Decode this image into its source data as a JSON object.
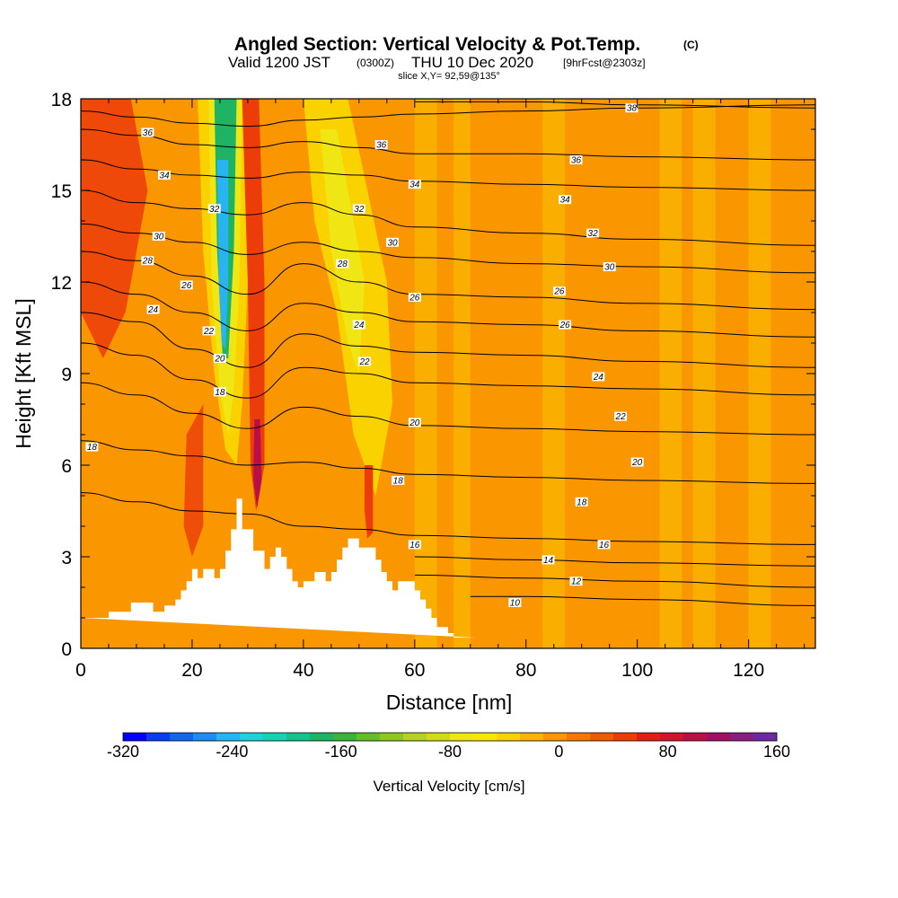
{
  "chart_data": {
    "type": "heatmap",
    "title": "Angled Section: Vertical Velocity & Pot.Temp.",
    "title_mark": "(C)",
    "subtitle_main": "Valid 1200 JST",
    "subtitle_zulu": "(0300Z)",
    "subtitle_date": "THU 10 Dec 2020",
    "subtitle_fcst": "[9hrFcst@2303z]",
    "slice_label": "slice X,Y= 92,59@135°",
    "xlabel": "Distance [nm]",
    "ylabel": "Height [Kft MSL]",
    "xlim": [
      0,
      132
    ],
    "ylim": [
      0,
      18
    ],
    "x_ticks": [
      0,
      20,
      40,
      60,
      80,
      100,
      120
    ],
    "y_ticks": [
      0,
      3,
      6,
      9,
      12,
      15,
      18
    ],
    "colorbar": {
      "label": "Vertical Velocity [cm/s]",
      "range": [
        -320,
        160
      ],
      "tick_values": [
        -320,
        -240,
        -160,
        -80,
        0,
        80,
        160
      ],
      "colors": [
        "#0000ff",
        "#0a3cf5",
        "#1464f0",
        "#1e8cf0",
        "#28b4f0",
        "#1ed2dc",
        "#14d2b4",
        "#14c38c",
        "#1eb464",
        "#3cb43c",
        "#64be28",
        "#8cc81e",
        "#b4d21e",
        "#d2dc14",
        "#f0e614",
        "#fae600",
        "#fad200",
        "#fab400",
        "#fa9600",
        "#f57800",
        "#f05a00",
        "#eb3c0a",
        "#e11e14",
        "#d2142d",
        "#b90f46",
        "#a00f64",
        "#871e82",
        "#6e28a0"
      ]
    },
    "field_colors": {
      "background": "#fa9600",
      "light": "#fab400",
      "yellow": "#fad200",
      "bright_yellow": "#f0e614",
      "red": "#eb3c0a",
      "dark_red": "#b90f46",
      "green": "#1eb464",
      "cyan": "#28b4f0"
    },
    "terrain": {
      "x": [
        0,
        5,
        5,
        9,
        9,
        13,
        13,
        15,
        15,
        17,
        17,
        18,
        18,
        19,
        19,
        20,
        20,
        21,
        21,
        22,
        22,
        24,
        24,
        25,
        25,
        26,
        26,
        27,
        27,
        28,
        28,
        29,
        29,
        31,
        31,
        33,
        33,
        34,
        34,
        35,
        35,
        36,
        36,
        37,
        37,
        38,
        38,
        39,
        39,
        40,
        40,
        42,
        42,
        44,
        44,
        45,
        45,
        46,
        46,
        47,
        47,
        48,
        48,
        49,
        49,
        50,
        50,
        53,
        53,
        54,
        54,
        55,
        55,
        56,
        56,
        57,
        57,
        60,
        60,
        61,
        61,
        62,
        62,
        63,
        63,
        64,
        64,
        66,
        66,
        67,
        67,
        70,
        70,
        71,
        71,
        132
      ],
      "height": [
        1.0,
        1.0,
        1.2,
        1.2,
        1.5,
        1.5,
        1.2,
        1.2,
        1.4,
        1.4,
        1.6,
        1.6,
        1.9,
        1.9,
        2.2,
        2.2,
        2.6,
        2.6,
        2.3,
        2.3,
        2.6,
        2.6,
        2.3,
        2.3,
        2.6,
        2.6,
        3.2,
        3.2,
        3.9,
        3.9,
        4.9,
        4.9,
        3.9,
        3.9,
        3.2,
        3.2,
        2.6,
        2.6,
        3.0,
        3.0,
        3.3,
        3.3,
        3.0,
        3.0,
        2.6,
        2.6,
        2.2,
        2.2,
        2.0,
        2.0,
        2.2,
        2.2,
        2.5,
        2.5,
        2.2,
        2.2,
        2.5,
        2.5,
        2.9,
        2.9,
        3.3,
        3.3,
        3.6,
        3.6,
        3.6,
        3.6,
        3.3,
        3.3,
        2.9,
        2.9,
        2.5,
        2.5,
        2.2,
        2.2,
        1.9,
        1.9,
        2.2,
        2.2,
        1.9,
        1.9,
        1.6,
        1.6,
        1.3,
        1.3,
        1.0,
        1.0,
        0.7,
        0.7,
        0.5,
        0.5,
        0.35,
        0.35,
        0.35,
        0.35,
        0.35
      ]
    },
    "isentropes": [
      {
        "label": "36",
        "points": [
          [
            0,
            17.6
          ],
          [
            10,
            17.4
          ],
          [
            20,
            17.2
          ],
          [
            30,
            17.1
          ],
          [
            40,
            17.3
          ],
          [
            50,
            17.4
          ],
          [
            60,
            17.5
          ],
          [
            80,
            17.6
          ],
          [
            100,
            17.7
          ],
          [
            132,
            17.8
          ]
        ]
      },
      {
        "label": "38",
        "points": [
          [
            60,
            17.9
          ],
          [
            80,
            17.9
          ],
          [
            100,
            17.8
          ],
          [
            132,
            17.7
          ]
        ]
      },
      {
        "label": "36",
        "points": [
          [
            0,
            17.0
          ],
          [
            10,
            16.8
          ],
          [
            20,
            16.5
          ],
          [
            30,
            16.4
          ],
          [
            40,
            16.6
          ],
          [
            50,
            16.4
          ],
          [
            60,
            16.2
          ],
          [
            80,
            16.2
          ],
          [
            100,
            16.1
          ],
          [
            132,
            16.0
          ]
        ]
      },
      {
        "label": "34",
        "points": [
          [
            0,
            16.0
          ],
          [
            10,
            15.7
          ],
          [
            20,
            15.5
          ],
          [
            30,
            15.4
          ],
          [
            40,
            15.6
          ],
          [
            50,
            15.5
          ],
          [
            60,
            15.3
          ],
          [
            80,
            15.2
          ],
          [
            100,
            15.1
          ],
          [
            132,
            15.0
          ]
        ]
      },
      {
        "label": "32",
        "points": [
          [
            0,
            15.0
          ],
          [
            10,
            14.6
          ],
          [
            20,
            14.4
          ],
          [
            30,
            14.2
          ],
          [
            40,
            14.6
          ],
          [
            50,
            14.2
          ],
          [
            60,
            13.8
          ],
          [
            80,
            13.6
          ],
          [
            100,
            13.4
          ],
          [
            132,
            13.2
          ]
        ]
      },
      {
        "label": "30",
        "points": [
          [
            0,
            13.9
          ],
          [
            10,
            13.6
          ],
          [
            20,
            13.3
          ],
          [
            30,
            12.9
          ],
          [
            40,
            13.3
          ],
          [
            50,
            13.0
          ],
          [
            60,
            12.8
          ],
          [
            80,
            12.6
          ],
          [
            100,
            12.5
          ],
          [
            132,
            12.3
          ]
        ]
      },
      {
        "label": "28",
        "points": [
          [
            0,
            13.0
          ],
          [
            10,
            12.7
          ],
          [
            20,
            12.2
          ],
          [
            30,
            11.6
          ],
          [
            40,
            12.6
          ],
          [
            50,
            12.0
          ],
          [
            60,
            11.6
          ],
          [
            80,
            11.5
          ],
          [
            100,
            11.3
          ],
          [
            132,
            11.1
          ]
        ]
      },
      {
        "label": "26",
        "points": [
          [
            0,
            12.0
          ],
          [
            10,
            11.6
          ],
          [
            20,
            11.0
          ],
          [
            30,
            10.4
          ],
          [
            40,
            11.3
          ],
          [
            50,
            11.0
          ],
          [
            60,
            10.7
          ],
          [
            80,
            10.6
          ],
          [
            100,
            10.4
          ],
          [
            132,
            10.2
          ]
        ]
      },
      {
        "label": "24",
        "points": [
          [
            0,
            11.0
          ],
          [
            10,
            10.7
          ],
          [
            20,
            9.8
          ],
          [
            30,
            9.2
          ],
          [
            40,
            10.3
          ],
          [
            50,
            9.9
          ],
          [
            60,
            9.7
          ],
          [
            80,
            9.6
          ],
          [
            100,
            9.4
          ],
          [
            132,
            9.2
          ]
        ]
      },
      {
        "label": "22",
        "points": [
          [
            0,
            10.0
          ],
          [
            10,
            9.6
          ],
          [
            20,
            8.8
          ],
          [
            30,
            8.2
          ],
          [
            40,
            9.2
          ],
          [
            50,
            9.0
          ],
          [
            60,
            8.7
          ],
          [
            80,
            8.6
          ],
          [
            100,
            8.5
          ],
          [
            132,
            8.3
          ]
        ]
      },
      {
        "label": "20",
        "points": [
          [
            0,
            8.7
          ],
          [
            10,
            8.3
          ],
          [
            20,
            7.7
          ],
          [
            30,
            7.2
          ],
          [
            40,
            7.9
          ],
          [
            50,
            7.6
          ],
          [
            60,
            7.3
          ],
          [
            80,
            7.2
          ],
          [
            100,
            7.1
          ],
          [
            132,
            7.0
          ]
        ]
      },
      {
        "label": "18",
        "points": [
          [
            0,
            6.8
          ],
          [
            10,
            6.5
          ],
          [
            20,
            6.3
          ],
          [
            30,
            6.0
          ],
          [
            40,
            6.1
          ],
          [
            50,
            5.9
          ],
          [
            60,
            5.7
          ],
          [
            80,
            5.6
          ],
          [
            100,
            5.5
          ],
          [
            132,
            5.4
          ]
        ]
      },
      {
        "label": "16",
        "points": [
          [
            0,
            5.1
          ],
          [
            10,
            4.8
          ],
          [
            20,
            4.5
          ],
          [
            30,
            4.4
          ],
          [
            40,
            4.0
          ],
          [
            50,
            3.9
          ],
          [
            60,
            3.7
          ],
          [
            80,
            3.6
          ],
          [
            100,
            3.5
          ],
          [
            132,
            3.4
          ]
        ]
      },
      {
        "label": "14",
        "points": [
          [
            60,
            3.0
          ],
          [
            80,
            2.9
          ],
          [
            100,
            2.8
          ],
          [
            132,
            2.7
          ]
        ]
      },
      {
        "label": "12",
        "points": [
          [
            60,
            2.4
          ],
          [
            80,
            2.3
          ],
          [
            100,
            2.2
          ],
          [
            132,
            2.0
          ]
        ]
      },
      {
        "label": "10",
        "points": [
          [
            70,
            1.7
          ],
          [
            80,
            1.7
          ],
          [
            100,
            1.6
          ],
          [
            132,
            1.4
          ]
        ]
      }
    ],
    "contour_labels": [
      {
        "text": "36",
        "x": 12,
        "y": 16.9
      },
      {
        "text": "34",
        "x": 15,
        "y": 15.5
      },
      {
        "text": "32",
        "x": 24,
        "y": 14.4
      },
      {
        "text": "30",
        "x": 14,
        "y": 13.5
      },
      {
        "text": "28",
        "x": 12,
        "y": 12.7
      },
      {
        "text": "26",
        "x": 19,
        "y": 11.9
      },
      {
        "text": "24",
        "x": 13,
        "y": 11.1
      },
      {
        "text": "22",
        "x": 23,
        "y": 10.4
      },
      {
        "text": "20",
        "x": 25,
        "y": 9.5
      },
      {
        "text": "18",
        "x": 25,
        "y": 8.4
      },
      {
        "text": "18",
        "x": 2,
        "y": 6.6
      },
      {
        "text": "38",
        "x": 99,
        "y": 17.7
      },
      {
        "text": "36",
        "x": 54,
        "y": 16.5
      },
      {
        "text": "36",
        "x": 89,
        "y": 16.0
      },
      {
        "text": "34",
        "x": 60,
        "y": 15.2
      },
      {
        "text": "34",
        "x": 87,
        "y": 14.7
      },
      {
        "text": "32",
        "x": 50,
        "y": 14.4
      },
      {
        "text": "32",
        "x": 92,
        "y": 13.6
      },
      {
        "text": "30",
        "x": 56,
        "y": 13.3
      },
      {
        "text": "30",
        "x": 95,
        "y": 12.5
      },
      {
        "text": "28",
        "x": 47,
        "y": 12.6
      },
      {
        "text": "26",
        "x": 60,
        "y": 11.5
      },
      {
        "text": "26",
        "x": 86,
        "y": 11.7
      },
      {
        "text": "26",
        "x": 87,
        "y": 10.6
      },
      {
        "text": "24",
        "x": 50,
        "y": 10.6
      },
      {
        "text": "24",
        "x": 93,
        "y": 8.9
      },
      {
        "text": "22",
        "x": 51,
        "y": 9.4
      },
      {
        "text": "22",
        "x": 97,
        "y": 7.6
      },
      {
        "text": "20",
        "x": 60,
        "y": 7.4
      },
      {
        "text": "20",
        "x": 100,
        "y": 6.1
      },
      {
        "text": "18",
        "x": 57,
        "y": 5.5
      },
      {
        "text": "18",
        "x": 90,
        "y": 4.8
      },
      {
        "text": "16",
        "x": 60,
        "y": 3.4
      },
      {
        "text": "16",
        "x": 94,
        "y": 3.4
      },
      {
        "text": "14",
        "x": 84,
        "y": 2.9
      },
      {
        "text": "12",
        "x": 89,
        "y": 2.2
      },
      {
        "text": "10",
        "x": 78,
        "y": 1.5
      }
    ]
  }
}
